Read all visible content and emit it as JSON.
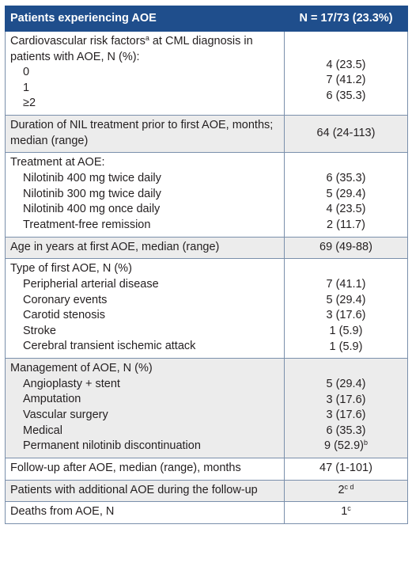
{
  "header": {
    "left": "Patients experiencing AOE",
    "right": "N = 17/73 (23.3%)"
  },
  "rows": {
    "risk": {
      "title_a": "Cardiovascular risk factors",
      "title_sup": "a",
      "title_b": " at CML diagnosis in patients with AOE, N (%):",
      "items": [
        "0",
        "1",
        "≥2"
      ],
      "values": [
        "4 (23.5)",
        "7 (41.2)",
        "6 (35.3)"
      ]
    },
    "duration": {
      "label": "Duration of NIL treatment prior to first AOE, months; median (range)",
      "value": "64 (24-113)"
    },
    "treatment": {
      "title": "Treatment at AOE:",
      "items": [
        "Nilotinib 400 mg twice daily",
        "Nilotinib 300 mg twice daily",
        "Nilotinib 400 mg once daily",
        "Treatment-free remission"
      ],
      "values": [
        "6 (35.3)",
        "5 (29.4)",
        "4 (23.5)",
        "2 (11.7)"
      ]
    },
    "age": {
      "label": "Age in years at first AOE, median (range)",
      "value": "69 (49-88)"
    },
    "type": {
      "title": "Type of first AOE, N (%)",
      "items": [
        "Peripherial arterial disease",
        "Coronary events",
        "Carotid stenosis",
        "Stroke",
        "Cerebral transient ischemic attack"
      ],
      "values": [
        "7 (41.1)",
        "5 (29.4)",
        "3 (17.6)",
        "1 (5.9)",
        "1 (5.9)"
      ]
    },
    "management": {
      "title": "Management of AOE, N (%)",
      "items": [
        "Angioplasty + stent",
        "Amputation",
        "Vascular surgery",
        "Medical",
        "Permanent nilotinib discontinuation"
      ],
      "values": [
        "5 (29.4)",
        "3 (17.6)",
        "3 (17.6)",
        "6 (35.3)",
        "9 (52.9)"
      ],
      "last_value_sup": "b"
    },
    "followup": {
      "label": "Follow-up after AOE, median (range), months",
      "value": "47 (1-101)"
    },
    "additional": {
      "label": "Patients with additional AOE during the follow-up",
      "value": "2",
      "value_sup": "c d"
    },
    "deaths": {
      "label": "Deaths from AOE, N",
      "value": "1",
      "value_sup": "c"
    }
  }
}
